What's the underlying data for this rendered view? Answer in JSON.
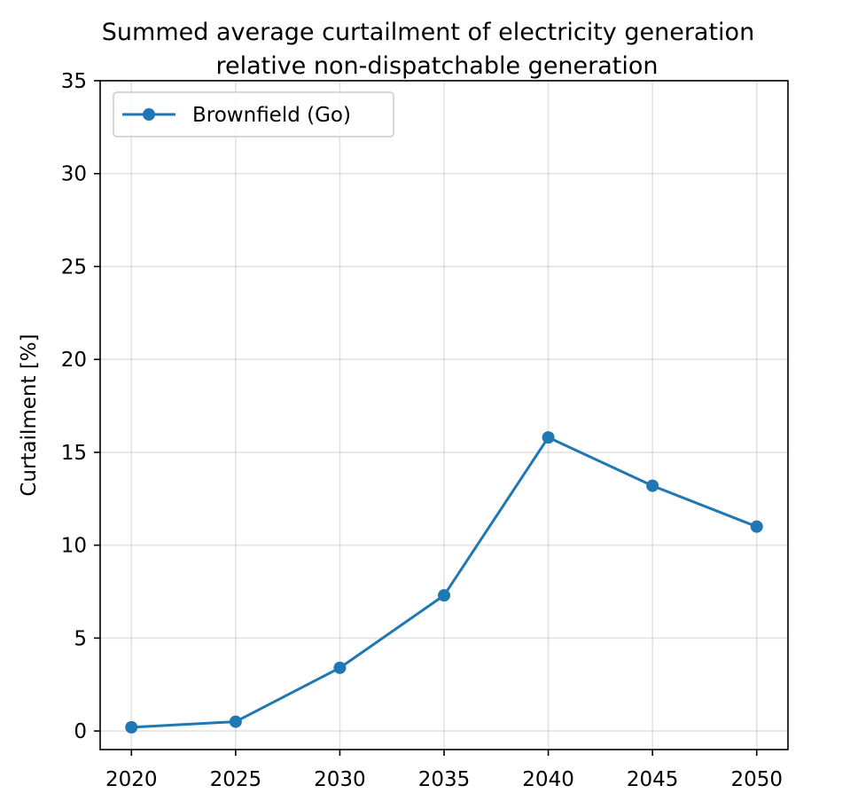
{
  "chart_data": {
    "type": "line",
    "title": [
      "Summed average curtailment of electricity generation",
      "relative non-dispatchable generation"
    ],
    "xlabel": "",
    "ylabel": "Curtailment [%]",
    "x": [
      2020,
      2025,
      2030,
      2035,
      2040,
      2045,
      2050
    ],
    "xticks": [
      "2020",
      "2025",
      "2030",
      "2035",
      "2040",
      "2045",
      "2050"
    ],
    "yticks": [
      "0",
      "5",
      "10",
      "15",
      "20",
      "25",
      "30",
      "35"
    ],
    "ylim": [
      -1,
      35
    ],
    "xlim": [
      2018.5,
      2051.5
    ],
    "grid": true,
    "legend_position": "upper-left",
    "series": [
      {
        "name": "Brownfield (Go)",
        "color": "#1f77b4",
        "marker": "circle",
        "values": [
          0.2,
          0.5,
          3.4,
          7.3,
          15.8,
          13.2,
          11.0
        ]
      }
    ]
  }
}
